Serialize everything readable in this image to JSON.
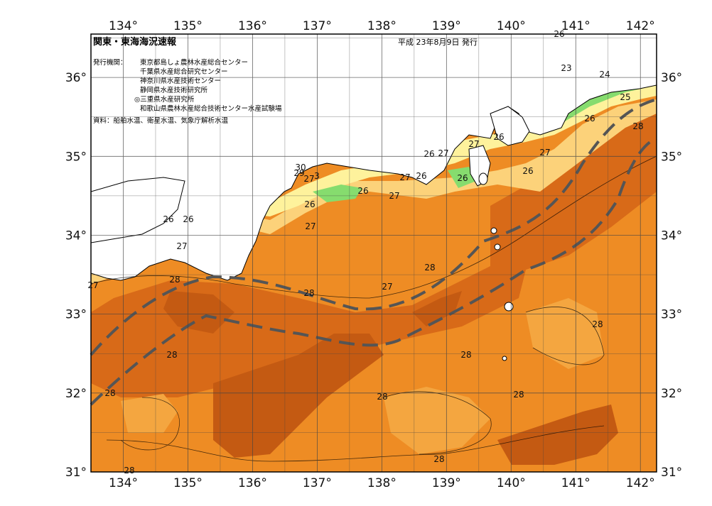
{
  "title": "関東・東海海況速報",
  "date": "平成 23年8月9日 発行",
  "publisher_label": "発行機関：",
  "publishers": [
    "東京都島しょ農林水産総合センター",
    "千葉県水産総合研究センター",
    "神奈川県水産技術センター",
    "静岡県水産技術研究所",
    "◎三重県水産研究所",
    "和歌山県農林水産総合技術センター水産試験場"
  ],
  "source": "資料：船舶水温、衛星水温、気象庁解析水温",
  "lon_labels": [
    "134°",
    "135°",
    "136°",
    "137°",
    "138°",
    "139°",
    "140°",
    "141°",
    "142°"
  ],
  "lat_labels": [
    "36°",
    "35°",
    "34°",
    "33°",
    "32°",
    "31°"
  ],
  "isotherm_labels": [
    {
      "text": "23"
    },
    {
      "text": "24"
    },
    {
      "text": "25"
    },
    {
      "text": "26"
    },
    {
      "text": "26"
    },
    {
      "text": "27"
    },
    {
      "text": "26"
    },
    {
      "text": "28"
    },
    {
      "text": "26"
    },
    {
      "text": "27"
    },
    {
      "text": "26"
    },
    {
      "text": "27"
    },
    {
      "text": "27"
    },
    {
      "text": "26"
    },
    {
      "text": "26"
    },
    {
      "text": "26"
    },
    {
      "text": "27"
    },
    {
      "text": "30"
    },
    {
      "text": "29"
    },
    {
      "text": "27"
    },
    {
      "text": "3"
    },
    {
      "text": "26"
    },
    {
      "text": "27"
    },
    {
      "text": "26"
    },
    {
      "text": "26"
    },
    {
      "text": "27"
    },
    {
      "text": "27"
    },
    {
      "text": "28"
    },
    {
      "text": "28"
    },
    {
      "text": "27"
    },
    {
      "text": "28"
    },
    {
      "text": "28"
    },
    {
      "text": "28"
    },
    {
      "text": "28"
    },
    {
      "text": "28"
    },
    {
      "text": "28"
    },
    {
      "text": "28"
    },
    {
      "text": "28"
    }
  ],
  "colors": {
    "sea_base": "#ee8c24",
    "warm": "#d86a18",
    "hot": "#c45a12",
    "light_orange": "#f4a640",
    "pale": "#fcd27a",
    "yellow": "#fef29c",
    "green": "#86dc6e",
    "cyan": "#5cd8ec",
    "blue": "#2d8cee",
    "kuroshio": "#555555"
  }
}
